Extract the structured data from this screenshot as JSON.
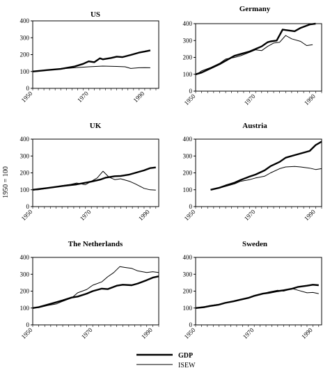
{
  "figure": {
    "ylabel": "1950 = 100",
    "legend": {
      "placement": "bottom-center",
      "items": [
        "GDP",
        "ISEW"
      ]
    }
  },
  "chart_data": [
    {
      "type": "line",
      "title": "US",
      "xlim": [
        1950,
        1995
      ],
      "ylim": [
        0,
        400
      ],
      "xticks": [
        1950,
        1970,
        1990
      ],
      "yticks": [
        0,
        100,
        200,
        300,
        400
      ],
      "series": [
        {
          "name": "GDP",
          "style": "thick",
          "x": [
            1950,
            1955,
            1960,
            1965,
            1968,
            1970,
            1972,
            1974,
            1975,
            1978,
            1980,
            1982,
            1985,
            1988,
            1990,
            1992
          ],
          "values": [
            100,
            108,
            115,
            130,
            145,
            160,
            155,
            178,
            172,
            180,
            188,
            185,
            198,
            212,
            218,
            225
          ]
        },
        {
          "name": "ISEW",
          "style": "thin",
          "x": [
            1950,
            1955,
            1960,
            1965,
            1970,
            1975,
            1980,
            1983,
            1985,
            1988,
            1990,
            1992
          ],
          "values": [
            100,
            108,
            115,
            122,
            128,
            132,
            130,
            128,
            118,
            122,
            123,
            122
          ]
        }
      ]
    },
    {
      "type": "line",
      "title": "Germany",
      "xlim": [
        1950,
        1992
      ],
      "ylim": [
        0,
        400
      ],
      "xticks": [
        1950,
        1970,
        1990
      ],
      "yticks": [
        0,
        100,
        200,
        300,
        400
      ],
      "series": [
        {
          "name": "GDP",
          "style": "thick",
          "x": [
            1950,
            1952,
            1955,
            1958,
            1960,
            1963,
            1965,
            1968,
            1970,
            1972,
            1974,
            1975,
            1977,
            1979,
            1980,
            1983,
            1985,
            1988,
            1990
          ],
          "values": [
            100,
            110,
            135,
            160,
            180,
            210,
            220,
            235,
            250,
            265,
            290,
            295,
            300,
            365,
            362,
            355,
            375,
            395,
            400
          ]
        },
        {
          "name": "ISEW",
          "style": "thin",
          "x": [
            1950,
            1952,
            1955,
            1958,
            1960,
            1963,
            1965,
            1968,
            1970,
            1972,
            1974,
            1976,
            1978,
            1980,
            1982,
            1985,
            1987,
            1989
          ],
          "values": [
            95,
            120,
            140,
            165,
            190,
            200,
            210,
            230,
            245,
            240,
            265,
            285,
            290,
            330,
            310,
            295,
            270,
            275
          ]
        }
      ]
    },
    {
      "type": "line",
      "title": "UK",
      "xlim": [
        1950,
        1993
      ],
      "ylim": [
        0,
        400
      ],
      "xticks": [
        1950,
        1970,
        1990
      ],
      "yticks": [
        0,
        100,
        200,
        300,
        400
      ],
      "series": [
        {
          "name": "GDP",
          "style": "thick",
          "x": [
            1950,
            1955,
            1960,
            1965,
            1970,
            1973,
            1975,
            1978,
            1980,
            1983,
            1985,
            1988,
            1990,
            1992
          ],
          "values": [
            100,
            110,
            122,
            132,
            148,
            160,
            172,
            180,
            182,
            190,
            200,
            215,
            228,
            232
          ]
        },
        {
          "name": "ISEW",
          "style": "thin",
          "x": [
            1950,
            1952,
            1955,
            1958,
            1960,
            1963,
            1965,
            1968,
            1970,
            1972,
            1974,
            1976,
            1978,
            1980,
            1983,
            1985,
            1988,
            1990,
            1992
          ],
          "values": [
            98,
            100,
            108,
            118,
            125,
            132,
            140,
            130,
            150,
            170,
            210,
            175,
            160,
            165,
            150,
            135,
            108,
            100,
            98
          ]
        }
      ]
    },
    {
      "type": "line",
      "title": "Austria",
      "xlim": [
        1950,
        1992
      ],
      "ylim": [
        0,
        400
      ],
      "xticks": [
        1950,
        1970,
        1990
      ],
      "yticks": [
        0,
        100,
        200,
        300,
        400
      ],
      "series": [
        {
          "name": "GDP",
          "style": "thick",
          "x": [
            1955,
            1958,
            1960,
            1963,
            1965,
            1968,
            1970,
            1973,
            1975,
            1978,
            1980,
            1983,
            1985,
            1988,
            1990,
            1992
          ],
          "values": [
            100,
            112,
            125,
            142,
            158,
            178,
            190,
            215,
            240,
            265,
            290,
            305,
            315,
            330,
            365,
            385
          ]
        },
        {
          "name": "ISEW",
          "style": "thin",
          "x": [
            1955,
            1958,
            1960,
            1963,
            1965,
            1968,
            1970,
            1973,
            1975,
            1978,
            1980,
            1983,
            1985,
            1988,
            1990,
            1992
          ],
          "values": [
            100,
            110,
            120,
            135,
            150,
            160,
            170,
            180,
            200,
            225,
            235,
            238,
            235,
            228,
            220,
            225
          ]
        }
      ]
    },
    {
      "type": "line",
      "title": "The Netherlands",
      "xlim": [
        1950,
        1992
      ],
      "ylim": [
        0,
        400
      ],
      "xticks": [
        1950,
        1970,
        1990
      ],
      "yticks": [
        0,
        100,
        200,
        300,
        400
      ],
      "series": [
        {
          "name": "GDP",
          "style": "thick",
          "x": [
            1950,
            1952,
            1955,
            1958,
            1960,
            1963,
            1965,
            1968,
            1970,
            1973,
            1975,
            1978,
            1980,
            1983,
            1985,
            1988,
            1990,
            1992
          ],
          "values": [
            100,
            105,
            120,
            135,
            145,
            162,
            168,
            185,
            200,
            215,
            212,
            232,
            238,
            235,
            245,
            265,
            280,
            288
          ]
        },
        {
          "name": "ISEW",
          "style": "thin",
          "x": [
            1950,
            1952,
            1955,
            1958,
            1960,
            1963,
            1965,
            1968,
            1970,
            1973,
            1975,
            1977,
            1979,
            1981,
            1983,
            1985,
            1988,
            1990,
            1992
          ],
          "values": [
            100,
            102,
            115,
            125,
            140,
            160,
            190,
            210,
            235,
            255,
            285,
            310,
            345,
            340,
            335,
            320,
            310,
            315,
            310
          ]
        }
      ]
    },
    {
      "type": "line",
      "title": "Sweden",
      "xlim": [
        1950,
        1993
      ],
      "ylim": [
        0,
        400
      ],
      "xticks": [
        1950,
        1970,
        1990
      ],
      "yticks": [
        0,
        100,
        200,
        300,
        400
      ],
      "series": [
        {
          "name": "GDP",
          "style": "thick",
          "x": [
            1950,
            1953,
            1955,
            1958,
            1960,
            1963,
            1965,
            1968,
            1970,
            1973,
            1975,
            1978,
            1980,
            1983,
            1985,
            1988,
            1990,
            1992
          ],
          "values": [
            100,
            105,
            112,
            120,
            130,
            140,
            148,
            160,
            172,
            185,
            190,
            200,
            205,
            215,
            225,
            232,
            238,
            235
          ]
        },
        {
          "name": "ISEW",
          "style": "thin",
          "x": [
            1950,
            1953,
            1955,
            1958,
            1960,
            1963,
            1965,
            1968,
            1970,
            1973,
            1975,
            1978,
            1980,
            1983,
            1985,
            1988,
            1990,
            1992
          ],
          "values": [
            100,
            108,
            115,
            122,
            132,
            142,
            150,
            158,
            170,
            185,
            195,
            205,
            200,
            215,
            205,
            190,
            192,
            185
          ]
        }
      ]
    }
  ]
}
